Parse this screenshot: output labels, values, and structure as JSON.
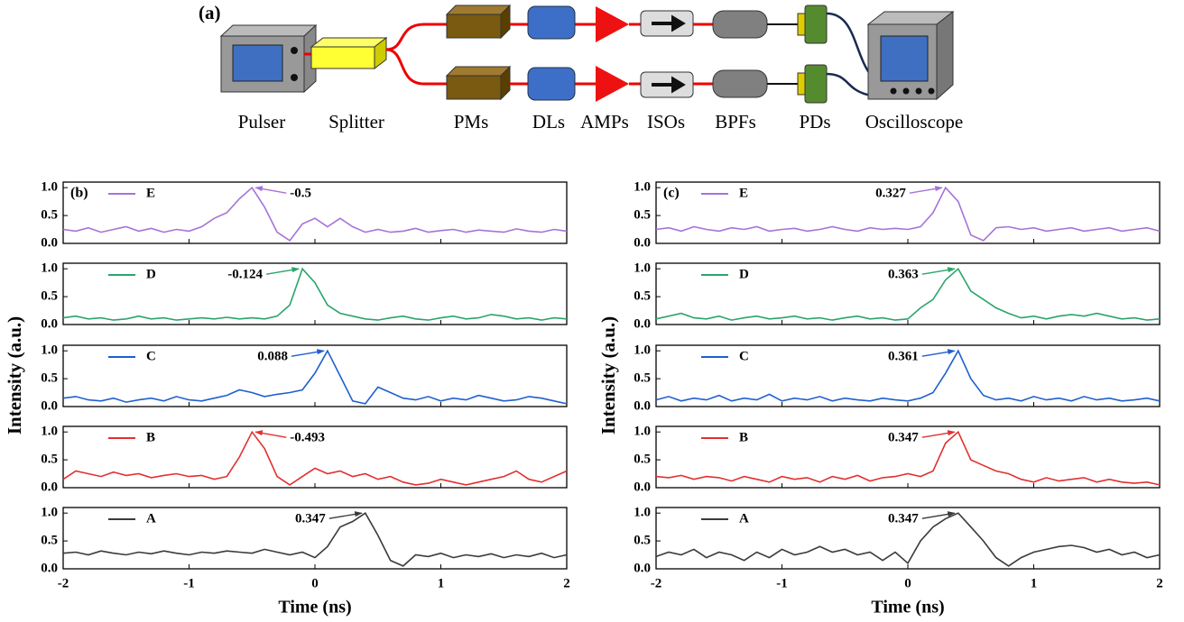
{
  "diagram": {
    "label": "(a)",
    "components": [
      "Pulser",
      "Splitter",
      "PMs",
      "DLs",
      "AMPs",
      "ISOs",
      "BPFs",
      "PDs",
      "Oscilloscope"
    ]
  },
  "chart_data": [
    {
      "type": "line",
      "panel_label": "(b)",
      "x_label": "Time (ns)",
      "y_label": "Intensity (a.u.)",
      "xlim": [
        -2,
        2
      ],
      "xticks": [
        -2,
        -1,
        0,
        1,
        2
      ],
      "ylim": [
        0,
        1.1
      ],
      "yticks": [
        {
          "value": 0,
          "label": "0.0"
        },
        {
          "value": 0.5,
          "label": "0.5"
        },
        {
          "value": 1,
          "label": "1.0"
        }
      ],
      "x": [
        -2,
        -1.9,
        -1.8,
        -1.7,
        -1.6,
        -1.5,
        -1.4,
        -1.3,
        -1.2,
        -1.1,
        -1,
        -0.9,
        -0.8,
        -0.7,
        -0.6,
        -0.5,
        -0.4,
        -0.3,
        -0.2,
        -0.1,
        0,
        0.1,
        0.2,
        0.3,
        0.4,
        0.5,
        0.6,
        0.7,
        0.8,
        0.9,
        1,
        1.1,
        1.2,
        1.3,
        1.4,
        1.5,
        1.6,
        1.7,
        1.8,
        1.9,
        2
      ],
      "series": [
        {
          "name": "E",
          "color": "#a673d8",
          "annotation": "-0.5",
          "values": [
            0.25,
            0.22,
            0.28,
            0.2,
            0.25,
            0.3,
            0.22,
            0.27,
            0.2,
            0.25,
            0.22,
            0.3,
            0.45,
            0.55,
            0.8,
            1.0,
            0.65,
            0.2,
            0.05,
            0.35,
            0.45,
            0.3,
            0.45,
            0.3,
            0.2,
            0.25,
            0.2,
            0.22,
            0.27,
            0.2,
            0.23,
            0.25,
            0.2,
            0.24,
            0.22,
            0.2,
            0.26,
            0.22,
            0.2,
            0.25,
            0.22
          ]
        },
        {
          "name": "D",
          "color": "#2aa56a",
          "annotation": "-0.124",
          "values": [
            0.12,
            0.15,
            0.1,
            0.12,
            0.08,
            0.1,
            0.15,
            0.1,
            0.12,
            0.08,
            0.1,
            0.12,
            0.1,
            0.13,
            0.1,
            0.12,
            0.1,
            0.15,
            0.35,
            1.0,
            0.75,
            0.35,
            0.2,
            0.15,
            0.1,
            0.08,
            0.12,
            0.15,
            0.1,
            0.08,
            0.12,
            0.15,
            0.1,
            0.12,
            0.18,
            0.15,
            0.1,
            0.12,
            0.08,
            0.12,
            0.1
          ]
        },
        {
          "name": "C",
          "color": "#1f5fcf",
          "annotation": "0.088",
          "values": [
            0.15,
            0.18,
            0.12,
            0.1,
            0.15,
            0.08,
            0.12,
            0.15,
            0.1,
            0.18,
            0.12,
            0.1,
            0.15,
            0.2,
            0.3,
            0.25,
            0.18,
            0.22,
            0.25,
            0.3,
            0.6,
            1.0,
            0.55,
            0.1,
            0.05,
            0.35,
            0.25,
            0.15,
            0.12,
            0.18,
            0.1,
            0.15,
            0.12,
            0.2,
            0.15,
            0.1,
            0.12,
            0.18,
            0.15,
            0.1,
            0.05
          ]
        },
        {
          "name": "B",
          "color": "#e23030",
          "annotation": "-0.493",
          "values": [
            0.15,
            0.3,
            0.25,
            0.2,
            0.28,
            0.22,
            0.25,
            0.18,
            0.22,
            0.25,
            0.2,
            0.22,
            0.15,
            0.2,
            0.55,
            1.0,
            0.7,
            0.2,
            0.05,
            0.2,
            0.35,
            0.25,
            0.3,
            0.2,
            0.25,
            0.15,
            0.2,
            0.1,
            0.05,
            0.08,
            0.15,
            0.1,
            0.05,
            0.1,
            0.15,
            0.2,
            0.3,
            0.15,
            0.1,
            0.2,
            0.3
          ]
        },
        {
          "name": "A",
          "color": "#3a3a3a",
          "annotation": "0.347",
          "values": [
            0.28,
            0.3,
            0.25,
            0.32,
            0.28,
            0.25,
            0.3,
            0.27,
            0.32,
            0.28,
            0.25,
            0.3,
            0.28,
            0.32,
            0.3,
            0.28,
            0.35,
            0.3,
            0.25,
            0.3,
            0.2,
            0.4,
            0.75,
            0.85,
            1.0,
            0.6,
            0.15,
            0.05,
            0.25,
            0.22,
            0.28,
            0.2,
            0.25,
            0.22,
            0.27,
            0.2,
            0.25,
            0.22,
            0.28,
            0.2,
            0.25
          ]
        }
      ]
    },
    {
      "type": "line",
      "panel_label": "(c)",
      "x_label": "Time (ns)",
      "y_label": "Intensity (a.u.)",
      "xlim": [
        -2,
        2
      ],
      "xticks": [
        -2,
        -1,
        0,
        1,
        2
      ],
      "ylim": [
        0,
        1.1
      ],
      "yticks": [
        {
          "value": 0,
          "label": "0.0"
        },
        {
          "value": 0.5,
          "label": "0.5"
        },
        {
          "value": 1,
          "label": "1.0"
        }
      ],
      "x": [
        -2,
        -1.9,
        -1.8,
        -1.7,
        -1.6,
        -1.5,
        -1.4,
        -1.3,
        -1.2,
        -1.1,
        -1,
        -0.9,
        -0.8,
        -0.7,
        -0.6,
        -0.5,
        -0.4,
        -0.3,
        -0.2,
        -0.1,
        0,
        0.1,
        0.2,
        0.3,
        0.4,
        0.5,
        0.6,
        0.7,
        0.8,
        0.9,
        1,
        1.1,
        1.2,
        1.3,
        1.4,
        1.5,
        1.6,
        1.7,
        1.8,
        1.9,
        2
      ],
      "series": [
        {
          "name": "E",
          "color": "#a673d8",
          "annotation": "0.327",
          "values": [
            0.25,
            0.28,
            0.22,
            0.3,
            0.25,
            0.22,
            0.28,
            0.25,
            0.3,
            0.22,
            0.25,
            0.27,
            0.22,
            0.25,
            0.3,
            0.25,
            0.22,
            0.28,
            0.25,
            0.27,
            0.25,
            0.3,
            0.55,
            1.0,
            0.75,
            0.15,
            0.05,
            0.28,
            0.3,
            0.25,
            0.28,
            0.22,
            0.25,
            0.28,
            0.22,
            0.25,
            0.28,
            0.22,
            0.25,
            0.28,
            0.22
          ]
        },
        {
          "name": "D",
          "color": "#2aa56a",
          "annotation": "0.363",
          "values": [
            0.1,
            0.15,
            0.2,
            0.12,
            0.1,
            0.15,
            0.08,
            0.12,
            0.15,
            0.1,
            0.12,
            0.15,
            0.1,
            0.12,
            0.08,
            0.12,
            0.15,
            0.1,
            0.12,
            0.08,
            0.1,
            0.3,
            0.45,
            0.8,
            1.0,
            0.6,
            0.45,
            0.3,
            0.2,
            0.12,
            0.15,
            0.1,
            0.15,
            0.18,
            0.15,
            0.2,
            0.15,
            0.1,
            0.12,
            0.08,
            0.1
          ]
        },
        {
          "name": "C",
          "color": "#1f5fcf",
          "annotation": "0.361",
          "values": [
            0.12,
            0.18,
            0.1,
            0.15,
            0.12,
            0.2,
            0.1,
            0.15,
            0.12,
            0.22,
            0.1,
            0.15,
            0.12,
            0.18,
            0.1,
            0.15,
            0.12,
            0.1,
            0.15,
            0.12,
            0.1,
            0.15,
            0.25,
            0.6,
            1.0,
            0.5,
            0.2,
            0.12,
            0.15,
            0.1,
            0.18,
            0.12,
            0.15,
            0.1,
            0.18,
            0.12,
            0.15,
            0.1,
            0.12,
            0.15,
            0.1
          ]
        },
        {
          "name": "B",
          "color": "#e23030",
          "annotation": "0.347",
          "values": [
            0.2,
            0.18,
            0.22,
            0.15,
            0.2,
            0.18,
            0.12,
            0.2,
            0.15,
            0.1,
            0.2,
            0.15,
            0.18,
            0.1,
            0.2,
            0.15,
            0.22,
            0.12,
            0.18,
            0.2,
            0.25,
            0.2,
            0.3,
            0.8,
            1.0,
            0.5,
            0.4,
            0.3,
            0.25,
            0.15,
            0.1,
            0.18,
            0.12,
            0.15,
            0.18,
            0.1,
            0.15,
            0.1,
            0.08,
            0.1,
            0.05
          ]
        },
        {
          "name": "A",
          "color": "#3a3a3a",
          "annotation": "0.347",
          "values": [
            0.22,
            0.3,
            0.25,
            0.35,
            0.2,
            0.3,
            0.25,
            0.15,
            0.3,
            0.2,
            0.35,
            0.25,
            0.3,
            0.4,
            0.3,
            0.35,
            0.25,
            0.3,
            0.15,
            0.3,
            0.1,
            0.5,
            0.75,
            0.9,
            1.0,
            0.75,
            0.5,
            0.2,
            0.05,
            0.2,
            0.3,
            0.35,
            0.4,
            0.42,
            0.38,
            0.3,
            0.35,
            0.25,
            0.3,
            0.2,
            0.25
          ]
        }
      ]
    }
  ]
}
